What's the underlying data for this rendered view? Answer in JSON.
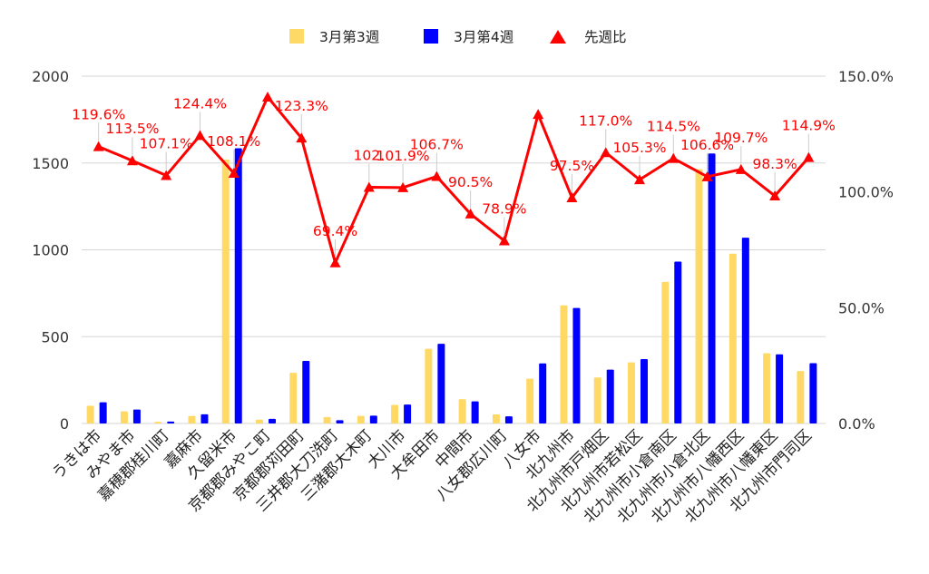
{
  "chart_data": {
    "type": "bar",
    "categories": [
      "うきは市",
      "みやま市",
      "嘉穂郡桂川町",
      "嘉麻市",
      "久留米市",
      "京都郡みやこ町",
      "京都郡苅田町",
      "三井郡大刀洗町",
      "三潴郡大木町",
      "大川市",
      "大牟田市",
      "中間市",
      "八女郡広川町",
      "八女市",
      "北九州市",
      "北九州市戸畑区",
      "北九州市若松区",
      "北九州市小倉南区",
      "北九州市小倉北区",
      "北九州市八幡西区",
      "北九州市八幡東区",
      "北九州市門司区"
    ],
    "series": [
      {
        "name": "3月第3週",
        "type": "bar",
        "axis": "left",
        "color": "#FFD966",
        "values": [
          102,
          70,
          10,
          43,
          1520,
          22,
          292,
          37,
          44,
          107,
          430,
          140,
          52,
          258,
          680,
          265,
          352,
          815,
          1465,
          978,
          405,
          302
        ]
      },
      {
        "name": "3月第4週",
        "type": "bar",
        "axis": "left",
        "color": "#0000FF",
        "values": [
          122,
          80,
          11,
          53,
          1585,
          27,
          360,
          19,
          45,
          109,
          459,
          127,
          41,
          346,
          665,
          310,
          371,
          932,
          1555,
          1070,
          398,
          347
        ]
      },
      {
        "name": "先週比",
        "type": "line",
        "axis": "right",
        "color": "#FF0000",
        "values": [
          119.6,
          113.5,
          107.1,
          124.4,
          108.1,
          141.0,
          123.3,
          69.4,
          102.0,
          101.9,
          106.7,
          90.5,
          78.9,
          133.5,
          97.5,
          117.0,
          105.3,
          114.5,
          106.6,
          109.7,
          98.3,
          114.9
        ],
        "labels": [
          "119.6%",
          "113.5%",
          "107.1%",
          "124.4%",
          "108.1%",
          "",
          "123.3%",
          "69.4%",
          "102.",
          "101.9%",
          "106.7%",
          "90.5%",
          "78.9%",
          "",
          "97.5%",
          "117.0%",
          "105.3%",
          "114.5%",
          "106.6%",
          "109.7%",
          "98.3%",
          "114.9%"
        ]
      }
    ],
    "y_left": {
      "min": 0,
      "max": 2000,
      "ticks": [
        "0",
        "500",
        "1000",
        "1500",
        "2000"
      ]
    },
    "y_right": {
      "min": 0,
      "max": 150,
      "ticks": [
        "0.0%",
        "50.0%",
        "100.0%",
        "150.0%"
      ]
    },
    "grid": true,
    "legend": "top-center"
  }
}
